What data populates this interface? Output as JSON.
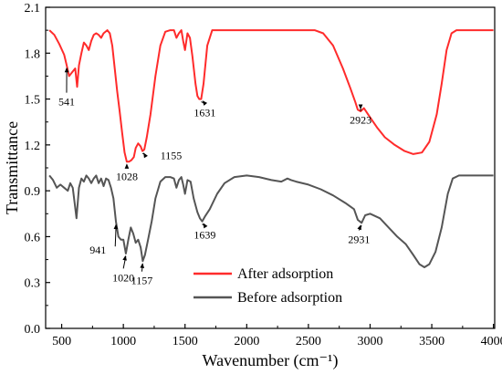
{
  "chart_data": {
    "type": "line",
    "title": "",
    "xlabel": "Wavenumber (cm⁻¹)",
    "ylabel": "Transmittance",
    "xlim": [
      370,
      4010
    ],
    "ylim": [
      0.0,
      2.1
    ],
    "x_ticks": [
      "500",
      "1000",
      "1500",
      "2000",
      "2500",
      "3000",
      "3500",
      "4000"
    ],
    "y_ticks": [
      "0.0",
      "0.3",
      "0.6",
      "0.9",
      "1.2",
      "1.5",
      "1.8",
      "2.1"
    ],
    "grid": false,
    "legend_position": "bottom-center",
    "series": [
      {
        "name": "After adsorption",
        "color": "#ff2b2b",
        "points": [
          [
            400,
            1.95
          ],
          [
            440,
            1.92
          ],
          [
            480,
            1.86
          ],
          [
            520,
            1.79
          ],
          [
            541,
            1.72
          ],
          [
            560,
            1.65
          ],
          [
            590,
            1.68
          ],
          [
            610,
            1.7
          ],
          [
            625,
            1.58
          ],
          [
            640,
            1.72
          ],
          [
            660,
            1.8
          ],
          [
            680,
            1.87
          ],
          [
            700,
            1.85
          ],
          [
            720,
            1.82
          ],
          [
            740,
            1.88
          ],
          [
            760,
            1.92
          ],
          [
            780,
            1.93
          ],
          [
            800,
            1.92
          ],
          [
            820,
            1.9
          ],
          [
            840,
            1.93
          ],
          [
            870,
            1.95
          ],
          [
            890,
            1.93
          ],
          [
            910,
            1.85
          ],
          [
            930,
            1.7
          ],
          [
            950,
            1.55
          ],
          [
            970,
            1.42
          ],
          [
            990,
            1.28
          ],
          [
            1010,
            1.15
          ],
          [
            1028,
            1.09
          ],
          [
            1045,
            1.09
          ],
          [
            1065,
            1.1
          ],
          [
            1085,
            1.12
          ],
          [
            1100,
            1.18
          ],
          [
            1120,
            1.21
          ],
          [
            1140,
            1.19
          ],
          [
            1155,
            1.16
          ],
          [
            1170,
            1.17
          ],
          [
            1190,
            1.25
          ],
          [
            1220,
            1.4
          ],
          [
            1260,
            1.65
          ],
          [
            1300,
            1.85
          ],
          [
            1340,
            1.94
          ],
          [
            1380,
            1.95
          ],
          [
            1410,
            1.95
          ],
          [
            1430,
            1.9
          ],
          [
            1450,
            1.93
          ],
          [
            1470,
            1.95
          ],
          [
            1485,
            1.88
          ],
          [
            1500,
            1.82
          ],
          [
            1520,
            1.93
          ],
          [
            1540,
            1.9
          ],
          [
            1560,
            1.78
          ],
          [
            1585,
            1.6
          ],
          [
            1600,
            1.52
          ],
          [
            1615,
            1.5
          ],
          [
            1631,
            1.5
          ],
          [
            1650,
            1.6
          ],
          [
            1680,
            1.85
          ],
          [
            1720,
            1.95
          ],
          [
            1800,
            1.95
          ],
          [
            2000,
            1.95
          ],
          [
            2200,
            1.95
          ],
          [
            2400,
            1.95
          ],
          [
            2550,
            1.95
          ],
          [
            2620,
            1.93
          ],
          [
            2700,
            1.85
          ],
          [
            2780,
            1.7
          ],
          [
            2840,
            1.57
          ],
          [
            2880,
            1.48
          ],
          [
            2900,
            1.43
          ],
          [
            2923,
            1.42
          ],
          [
            2950,
            1.44
          ],
          [
            3000,
            1.38
          ],
          [
            3060,
            1.31
          ],
          [
            3120,
            1.25
          ],
          [
            3200,
            1.2
          ],
          [
            3280,
            1.16
          ],
          [
            3350,
            1.14
          ],
          [
            3420,
            1.15
          ],
          [
            3480,
            1.22
          ],
          [
            3540,
            1.4
          ],
          [
            3580,
            1.6
          ],
          [
            3620,
            1.82
          ],
          [
            3660,
            1.93
          ],
          [
            3700,
            1.95
          ],
          [
            3800,
            1.95
          ],
          [
            3900,
            1.95
          ],
          [
            4000,
            1.95
          ]
        ]
      },
      {
        "name": "Before adsorption",
        "color": "#555555",
        "points": [
          [
            400,
            1.0
          ],
          [
            430,
            0.97
          ],
          [
            460,
            0.92
          ],
          [
            490,
            0.94
          ],
          [
            520,
            0.92
          ],
          [
            550,
            0.9
          ],
          [
            570,
            0.95
          ],
          [
            590,
            0.92
          ],
          [
            605,
            0.82
          ],
          [
            620,
            0.72
          ],
          [
            640,
            0.92
          ],
          [
            660,
            0.98
          ],
          [
            680,
            0.96
          ],
          [
            700,
            1.0
          ],
          [
            720,
            0.98
          ],
          [
            740,
            0.95
          ],
          [
            760,
            0.98
          ],
          [
            780,
            1.0
          ],
          [
            800,
            0.95
          ],
          [
            820,
            0.98
          ],
          [
            840,
            0.93
          ],
          [
            860,
            0.98
          ],
          [
            880,
            0.97
          ],
          [
            900,
            0.92
          ],
          [
            920,
            0.85
          ],
          [
            940,
            0.7
          ],
          [
            960,
            0.6
          ],
          [
            980,
            0.58
          ],
          [
            1000,
            0.58
          ],
          [
            1020,
            0.49
          ],
          [
            1040,
            0.58
          ],
          [
            1060,
            0.66
          ],
          [
            1080,
            0.62
          ],
          [
            1100,
            0.56
          ],
          [
            1120,
            0.58
          ],
          [
            1140,
            0.53
          ],
          [
            1157,
            0.44
          ],
          [
            1175,
            0.48
          ],
          [
            1200,
            0.58
          ],
          [
            1230,
            0.7
          ],
          [
            1260,
            0.85
          ],
          [
            1300,
            0.96
          ],
          [
            1340,
            0.99
          ],
          [
            1380,
            0.99
          ],
          [
            1410,
            0.98
          ],
          [
            1430,
            0.92
          ],
          [
            1450,
            0.97
          ],
          [
            1470,
            0.99
          ],
          [
            1485,
            0.94
          ],
          [
            1500,
            0.88
          ],
          [
            1520,
            0.97
          ],
          [
            1545,
            0.96
          ],
          [
            1570,
            0.85
          ],
          [
            1600,
            0.76
          ],
          [
            1620,
            0.72
          ],
          [
            1639,
            0.7
          ],
          [
            1660,
            0.73
          ],
          [
            1700,
            0.78
          ],
          [
            1760,
            0.88
          ],
          [
            1820,
            0.95
          ],
          [
            1900,
            0.99
          ],
          [
            2000,
            1.0
          ],
          [
            2100,
            0.99
          ],
          [
            2200,
            0.97
          ],
          [
            2280,
            0.96
          ],
          [
            2330,
            0.98
          ],
          [
            2360,
            0.97
          ],
          [
            2400,
            0.96
          ],
          [
            2500,
            0.94
          ],
          [
            2600,
            0.91
          ],
          [
            2700,
            0.87
          ],
          [
            2800,
            0.82
          ],
          [
            2870,
            0.78
          ],
          [
            2900,
            0.71
          ],
          [
            2931,
            0.69
          ],
          [
            2960,
            0.74
          ],
          [
            3000,
            0.75
          ],
          [
            3080,
            0.72
          ],
          [
            3150,
            0.66
          ],
          [
            3220,
            0.6
          ],
          [
            3290,
            0.55
          ],
          [
            3350,
            0.48
          ],
          [
            3400,
            0.42
          ],
          [
            3440,
            0.4
          ],
          [
            3480,
            0.42
          ],
          [
            3530,
            0.5
          ],
          [
            3580,
            0.66
          ],
          [
            3630,
            0.88
          ],
          [
            3670,
            0.98
          ],
          [
            3720,
            1.0
          ],
          [
            3800,
            1.0
          ],
          [
            3900,
            1.0
          ],
          [
            4000,
            1.0
          ]
        ]
      }
    ],
    "annotations": [
      {
        "text": "541",
        "series": 0,
        "x": 541
      },
      {
        "text": "1028",
        "series": 0,
        "x": 1028
      },
      {
        "text": "1155",
        "series": 0,
        "x": 1155
      },
      {
        "text": "1631",
        "series": 0,
        "x": 1631
      },
      {
        "text": "2923",
        "series": 0,
        "x": 2923
      },
      {
        "text": "941",
        "series": 1,
        "x": 941
      },
      {
        "text": "1020",
        "series": 1,
        "x": 1020
      },
      {
        "text": "1157",
        "series": 1,
        "x": 1157
      },
      {
        "text": "1639",
        "series": 1,
        "x": 1639
      },
      {
        "text": "2931",
        "series": 1,
        "x": 2931
      }
    ]
  }
}
